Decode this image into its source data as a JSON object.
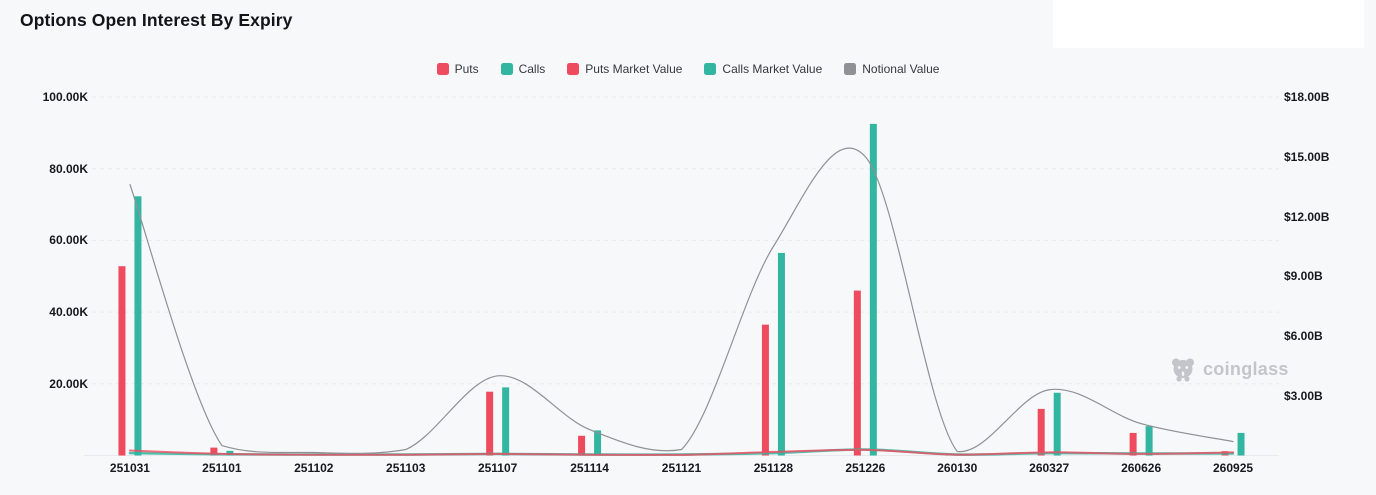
{
  "page": {
    "title": "Options Open Interest By Expiry",
    "background": "#f7f8f9"
  },
  "watermark": {
    "label": "coinglass"
  },
  "legend": {
    "position": "top-center",
    "items": [
      {
        "label": "Puts",
        "color": "#ef4b5e"
      },
      {
        "label": "Calls",
        "color": "#33b6a1"
      },
      {
        "label": "Puts Market Value",
        "color": "#ef4b5e"
      },
      {
        "label": "Calls Market Value",
        "color": "#33b6a1"
      },
      {
        "label": "Notional Value",
        "color": "#8f9196"
      }
    ]
  },
  "chart_data": {
    "type": "bar",
    "title": "Options Open Interest By Expiry",
    "categories": [
      "251031",
      "251101",
      "251102",
      "251103",
      "251107",
      "251114",
      "251121",
      "251128",
      "251226",
      "260130",
      "260327",
      "260626",
      "260925"
    ],
    "series": [
      {
        "name": "Puts",
        "type": "bar",
        "axis": "left",
        "color": "#ef4b5e",
        "values_thousands": [
          52.8,
          2.2,
          0.3,
          0.3,
          17.8,
          5.5,
          0.2,
          36.5,
          46.0,
          0.3,
          13.0,
          6.3,
          1.2
        ]
      },
      {
        "name": "Calls",
        "type": "bar",
        "axis": "left",
        "color": "#33b6a1",
        "values_thousands": [
          72.3,
          1.3,
          0.4,
          0.4,
          19.0,
          7.0,
          0.3,
          56.5,
          92.5,
          0.4,
          17.5,
          8.2,
          6.3
        ]
      },
      {
        "name": "Puts Market Value",
        "type": "line",
        "axis": "right",
        "color": "#ef4b5e",
        "values_billions": [
          0.25,
          0.08,
          0.04,
          0.04,
          0.08,
          0.04,
          0.03,
          0.18,
          0.28,
          0.04,
          0.16,
          0.08,
          0.16
        ]
      },
      {
        "name": "Calls Market Value",
        "type": "line",
        "axis": "right",
        "color": "#33b6a1",
        "values_billions": [
          0.12,
          0.06,
          0.05,
          0.05,
          0.08,
          0.05,
          0.05,
          0.12,
          0.3,
          0.05,
          0.12,
          0.1,
          0.1
        ]
      },
      {
        "name": "Notional Value",
        "type": "line",
        "axis": "right",
        "color": "#8f9196",
        "values_billions": [
          13.6,
          0.5,
          0.15,
          0.3,
          4.0,
          1.3,
          0.3,
          10.5,
          15.0,
          0.2,
          3.3,
          1.6,
          0.7
        ]
      }
    ],
    "left_axis": {
      "unit": "contracts",
      "min": 0,
      "max_thousands": 100,
      "ticks": [
        "20.00K",
        "40.00K",
        "60.00K",
        "80.00K",
        "100.00K"
      ]
    },
    "right_axis": {
      "unit": "USD",
      "min": 0,
      "max_billions": 18,
      "ticks": [
        "$3.00B",
        "$6.00B",
        "$9.00B",
        "$12.00B",
        "$15.00B",
        "$18.00B"
      ]
    },
    "grid": "horizontal-dashed",
    "legend_position": "top-center"
  }
}
